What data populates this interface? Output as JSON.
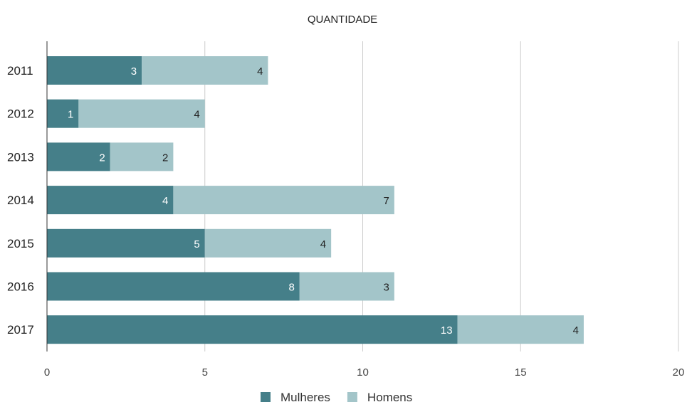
{
  "chart_data": {
    "type": "bar",
    "orientation": "horizontal",
    "stacked": true,
    "title": "QUANTIDADE",
    "xlabel": "",
    "ylabel": "",
    "categories": [
      "2011",
      "2012",
      "2013",
      "2014",
      "2015",
      "2016",
      "2017"
    ],
    "series": [
      {
        "name": "Mulheres",
        "color": "#457f89",
        "label_color": "#ffffff",
        "values": [
          3,
          1,
          2,
          4,
          5,
          8,
          13
        ]
      },
      {
        "name": "Homens",
        "color": "#a3c5c9",
        "label_color": "#222222",
        "values": [
          4,
          4,
          2,
          7,
          4,
          3,
          4
        ]
      }
    ],
    "xlim": [
      0,
      20
    ],
    "xticks": [
      "0",
      "5",
      "10",
      "15",
      "20"
    ],
    "grid": "vertical",
    "legend": "bottom-center"
  }
}
